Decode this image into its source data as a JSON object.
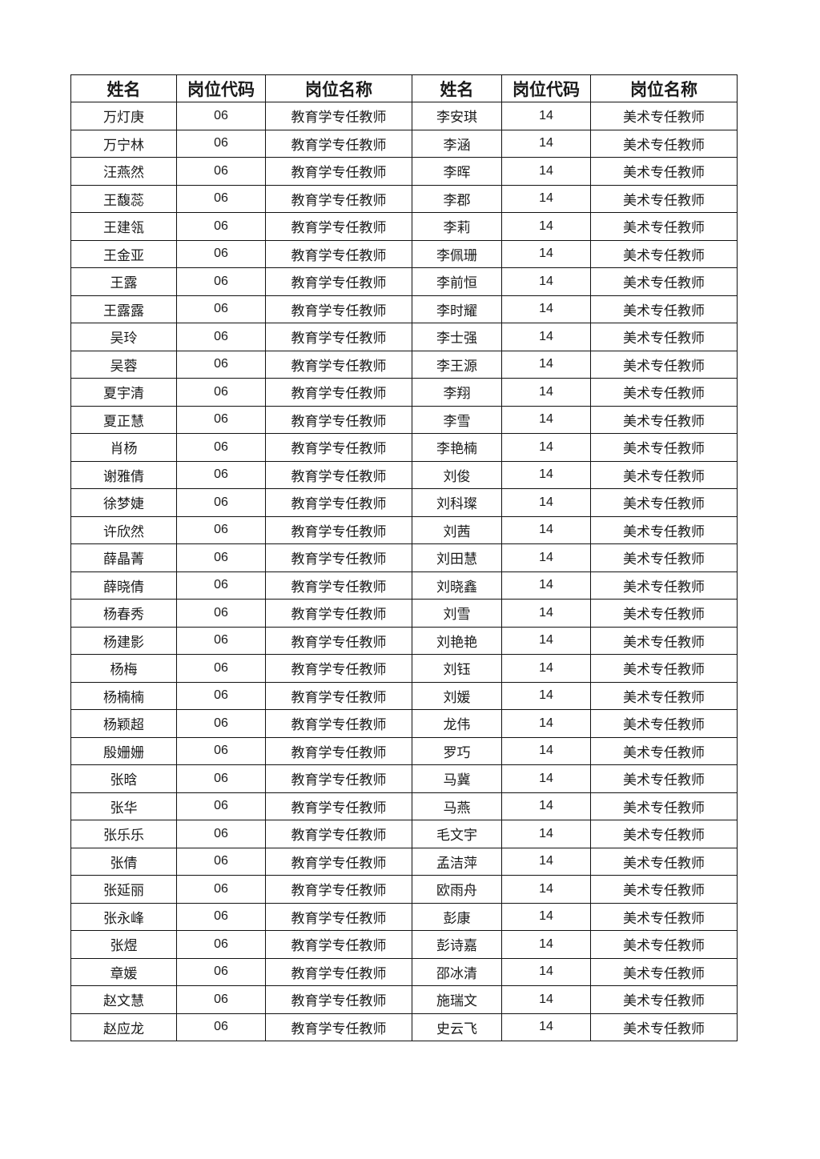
{
  "headers": [
    "姓名",
    "岗位代码",
    "岗位名称",
    "姓名",
    "岗位代码",
    "岗位名称"
  ],
  "rows": [
    [
      "万灯庚",
      "06",
      "教育学专任教师",
      "李安琪",
      "14",
      "美术专任教师"
    ],
    [
      "万宁林",
      "06",
      "教育学专任教师",
      "李涵",
      "14",
      "美术专任教师"
    ],
    [
      "汪燕然",
      "06",
      "教育学专任教师",
      "李晖",
      "14",
      "美术专任教师"
    ],
    [
      "王馥蕊",
      "06",
      "教育学专任教师",
      "李郡",
      "14",
      "美术专任教师"
    ],
    [
      "王建瓴",
      "06",
      "教育学专任教师",
      "李莉",
      "14",
      "美术专任教师"
    ],
    [
      "王金亚",
      "06",
      "教育学专任教师",
      "李佩珊",
      "14",
      "美术专任教师"
    ],
    [
      "王露",
      "06",
      "教育学专任教师",
      "李前恒",
      "14",
      "美术专任教师"
    ],
    [
      "王露露",
      "06",
      "教育学专任教师",
      "李时耀",
      "14",
      "美术专任教师"
    ],
    [
      "吴玲",
      "06",
      "教育学专任教师",
      "李士强",
      "14",
      "美术专任教师"
    ],
    [
      "吴蓉",
      "06",
      "教育学专任教师",
      "李王源",
      "14",
      "美术专任教师"
    ],
    [
      "夏宇清",
      "06",
      "教育学专任教师",
      "李翔",
      "14",
      "美术专任教师"
    ],
    [
      "夏正慧",
      "06",
      "教育学专任教师",
      "李雪",
      "14",
      "美术专任教师"
    ],
    [
      "肖杨",
      "06",
      "教育学专任教师",
      "李艳楠",
      "14",
      "美术专任教师"
    ],
    [
      "谢雅倩",
      "06",
      "教育学专任教师",
      "刘俊",
      "14",
      "美术专任教师"
    ],
    [
      "徐梦婕",
      "06",
      "教育学专任教师",
      "刘科璨",
      "14",
      "美术专任教师"
    ],
    [
      "许欣然",
      "06",
      "教育学专任教师",
      "刘茜",
      "14",
      "美术专任教师"
    ],
    [
      "薛晶菁",
      "06",
      "教育学专任教师",
      "刘田慧",
      "14",
      "美术专任教师"
    ],
    [
      "薛晓倩",
      "06",
      "教育学专任教师",
      "刘晓鑫",
      "14",
      "美术专任教师"
    ],
    [
      "杨春秀",
      "06",
      "教育学专任教师",
      "刘雪",
      "14",
      "美术专任教师"
    ],
    [
      "杨建影",
      "06",
      "教育学专任教师",
      "刘艳艳",
      "14",
      "美术专任教师"
    ],
    [
      "杨梅",
      "06",
      "教育学专任教师",
      "刘钰",
      "14",
      "美术专任教师"
    ],
    [
      "杨楠楠",
      "06",
      "教育学专任教师",
      "刘媛",
      "14",
      "美术专任教师"
    ],
    [
      "杨颖超",
      "06",
      "教育学专任教师",
      "龙伟",
      "14",
      "美术专任教师"
    ],
    [
      "殷姗姗",
      "06",
      "教育学专任教师",
      "罗巧",
      "14",
      "美术专任教师"
    ],
    [
      "张晗",
      "06",
      "教育学专任教师",
      "马冀",
      "14",
      "美术专任教师"
    ],
    [
      "张华",
      "06",
      "教育学专任教师",
      "马燕",
      "14",
      "美术专任教师"
    ],
    [
      "张乐乐",
      "06",
      "教育学专任教师",
      "毛文宇",
      "14",
      "美术专任教师"
    ],
    [
      "张倩",
      "06",
      "教育学专任教师",
      "孟洁萍",
      "14",
      "美术专任教师"
    ],
    [
      "张延丽",
      "06",
      "教育学专任教师",
      "欧雨舟",
      "14",
      "美术专任教师"
    ],
    [
      "张永峰",
      "06",
      "教育学专任教师",
      "彭康",
      "14",
      "美术专任教师"
    ],
    [
      "张煜",
      "06",
      "教育学专任教师",
      "彭诗嘉",
      "14",
      "美术专任教师"
    ],
    [
      "章媛",
      "06",
      "教育学专任教师",
      "邵冰清",
      "14",
      "美术专任教师"
    ],
    [
      "赵文慧",
      "06",
      "教育学专任教师",
      "施瑞文",
      "14",
      "美术专任教师"
    ],
    [
      "赵应龙",
      "06",
      "教育学专任教师",
      "史云飞",
      "14",
      "美术专任教师"
    ]
  ]
}
